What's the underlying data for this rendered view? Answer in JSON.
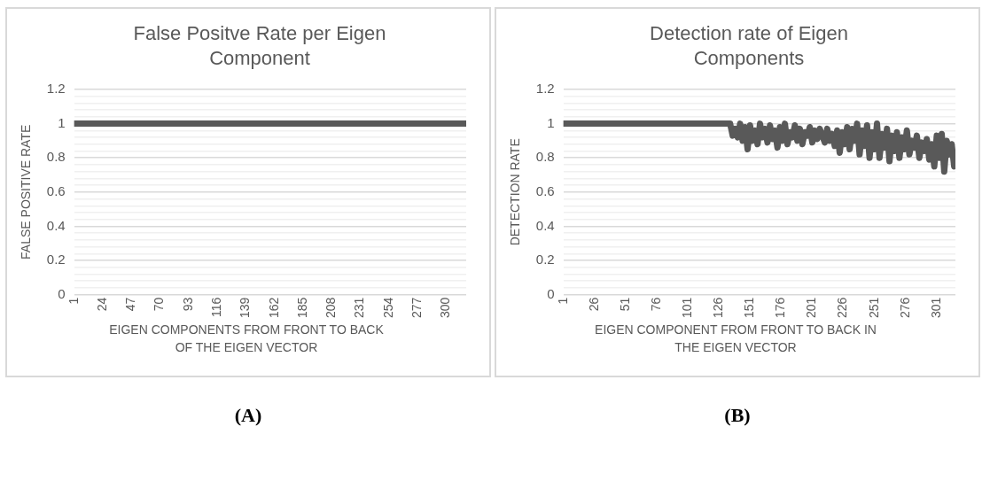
{
  "chart_data": [
    {
      "type": "line",
      "title": "False Positve Rate per Eigen Component",
      "xlabel": "EIGEN COMPONENTS FROM FRONT TO BACK OF THE EIGEN VECTOR",
      "ylabel": "FALSE POSITIVE RATE",
      "annotations": [
        "(A)"
      ],
      "grid": "y",
      "marker": "none",
      "line_style": "solid",
      "x": [
        1,
        316
      ],
      "series": [
        {
          "color": "#595959",
          "values": [
            1,
            1
          ]
        }
      ],
      "xlim": [
        1,
        316
      ],
      "xticks": [
        1,
        24,
        47,
        70,
        93,
        116,
        139,
        162,
        185,
        208,
        231,
        254,
        277,
        300
      ],
      "ylim": [
        0,
        1.2
      ],
      "yticks": [
        0,
        {
          "value": 0.04,
          "label": null
        },
        {
          "value": 0.08,
          "label": null
        },
        {
          "value": 0.12,
          "label": null
        },
        {
          "value": 0.16,
          "label": null
        },
        0.2,
        {
          "value": 0.24,
          "label": null
        },
        {
          "value": 0.28,
          "label": null
        },
        {
          "value": 0.32,
          "label": null
        },
        {
          "value": 0.36,
          "label": null
        },
        0.4,
        {
          "value": 0.44,
          "label": null
        },
        {
          "value": 0.48,
          "label": null
        },
        {
          "value": 0.52,
          "label": null
        },
        {
          "value": 0.56,
          "label": null
        },
        0.6,
        {
          "value": 0.64,
          "label": null
        },
        {
          "value": 0.68,
          "label": null
        },
        {
          "value": 0.72,
          "label": null
        },
        {
          "value": 0.76,
          "label": null
        },
        0.8,
        {
          "value": 0.84,
          "label": null
        },
        {
          "value": 0.88,
          "label": null
        },
        {
          "value": 0.92,
          "label": null
        },
        {
          "value": 0.96,
          "label": null
        },
        1,
        {
          "value": 1.04,
          "label": null
        },
        {
          "value": 1.08,
          "label": null
        },
        {
          "value": 1.12,
          "label": null
        },
        {
          "value": 1.16,
          "label": null
        },
        1.2
      ]
    },
    {
      "type": "line",
      "title": "Detection rate of Eigen Components",
      "xlabel": "EIGEN COMPONENT FROM FRONT TO BACK IN THE EIGEN VECTOR",
      "ylabel": "DETECTION RATE",
      "annotations": [
        "(B)"
      ],
      "grid": "y",
      "marker": "none",
      "line_style": "solid",
      "x": [
        1,
        135,
        137,
        139,
        141,
        143,
        145,
        147,
        149,
        151,
        153,
        155,
        157,
        159,
        161,
        163,
        165,
        167,
        169,
        171,
        173,
        175,
        177,
        179,
        181,
        183,
        185,
        187,
        189,
        191,
        193,
        195,
        197,
        199,
        201,
        203,
        205,
        207,
        209,
        211,
        213,
        215,
        217,
        219,
        221,
        223,
        225,
        227,
        229,
        231,
        233,
        235,
        237,
        239,
        241,
        243,
        245,
        247,
        249,
        251,
        253,
        255,
        257,
        259,
        261,
        263,
        265,
        267,
        269,
        271,
        273,
        275,
        277,
        279,
        281,
        283,
        285,
        287,
        289,
        291,
        293,
        295,
        297,
        299,
        301,
        303,
        305,
        307,
        309,
        311,
        313,
        315,
        316
      ],
      "series": [
        {
          "color": "#595959",
          "values": [
            1,
            1,
            0.93,
            0.97,
            0.92,
            1,
            0.9,
            0.98,
            0.85,
            0.99,
            0.9,
            0.96,
            0.88,
            1,
            0.92,
            0.97,
            0.89,
            0.99,
            0.91,
            0.96,
            0.86,
            0.98,
            0.9,
            1,
            0.88,
            0.95,
            0.92,
            0.99,
            0.9,
            0.97,
            0.88,
            0.95,
            0.93,
            0.98,
            0.89,
            0.96,
            0.91,
            0.97,
            0.93,
            0.89,
            0.97,
            0.9,
            0.94,
            0.87,
            0.96,
            0.83,
            0.95,
            0.88,
            0.98,
            0.85,
            0.97,
            0.9,
            1,
            0.82,
            0.96,
            0.87,
            0.99,
            0.8,
            0.95,
            0.85,
            1,
            0.8,
            0.94,
            0.86,
            0.97,
            0.78,
            0.93,
            0.84,
            0.95,
            0.8,
            0.92,
            0.85,
            0.96,
            0.82,
            0.9,
            0.86,
            0.93,
            0.8,
            0.89,
            0.84,
            0.91,
            0.79,
            0.88,
            0.75,
            0.93,
            0.8,
            0.94,
            0.72,
            0.9,
            0.82,
            0.88,
            0.75,
            0.8
          ]
        }
      ],
      "xlim": [
        1,
        316
      ],
      "xticks": [
        1,
        26,
        51,
        76,
        101,
        126,
        151,
        176,
        201,
        226,
        251,
        276,
        301
      ],
      "ylim": [
        0,
        1.2
      ],
      "yticks": [
        0,
        {
          "value": 0.04,
          "label": null
        },
        {
          "value": 0.08,
          "label": null
        },
        {
          "value": 0.12,
          "label": null
        },
        {
          "value": 0.16,
          "label": null
        },
        0.2,
        {
          "value": 0.24,
          "label": null
        },
        {
          "value": 0.28,
          "label": null
        },
        {
          "value": 0.32,
          "label": null
        },
        {
          "value": 0.36,
          "label": null
        },
        0.4,
        {
          "value": 0.44,
          "label": null
        },
        {
          "value": 0.48,
          "label": null
        },
        {
          "value": 0.52,
          "label": null
        },
        {
          "value": 0.56,
          "label": null
        },
        0.6,
        {
          "value": 0.64,
          "label": null
        },
        {
          "value": 0.68,
          "label": null
        },
        {
          "value": 0.72,
          "label": null
        },
        {
          "value": 0.76,
          "label": null
        },
        0.8,
        {
          "value": 0.84,
          "label": null
        },
        {
          "value": 0.88,
          "label": null
        },
        {
          "value": 0.92,
          "label": null
        },
        {
          "value": 0.96,
          "label": null
        },
        1,
        {
          "value": 1.04,
          "label": null
        },
        {
          "value": 1.08,
          "label": null
        },
        {
          "value": 1.12,
          "label": null
        },
        {
          "value": 1.16,
          "label": null
        },
        1.2
      ]
    }
  ]
}
